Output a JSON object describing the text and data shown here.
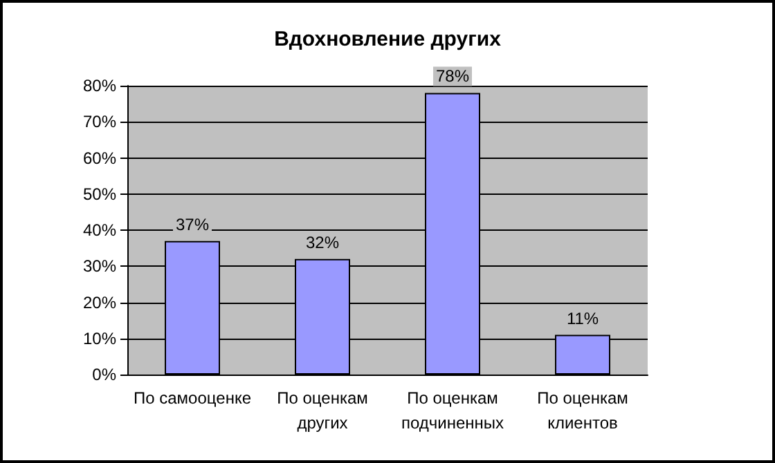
{
  "chart_data": {
    "type": "bar",
    "title": "Вдохновление других",
    "categories": [
      "По самооценке",
      "По оценкам\nдругих",
      "По оценкам\nподчиненных",
      "По оценкам\nклиентов"
    ],
    "values": [
      37,
      32,
      78,
      11
    ],
    "value_labels": [
      "37%",
      "32%",
      "78%",
      "11%"
    ],
    "color": "#9999ff",
    "ylim": [
      0,
      80
    ],
    "yticks": [
      {
        "value": 0,
        "label": "0%"
      },
      {
        "value": 10,
        "label": "10%"
      },
      {
        "value": 20,
        "label": "20%"
      },
      {
        "value": 30,
        "label": "30%"
      },
      {
        "value": 40,
        "label": "40%"
      },
      {
        "value": 50,
        "label": "50%"
      },
      {
        "value": 60,
        "label": "60%"
      },
      {
        "value": 70,
        "label": "70%"
      },
      {
        "value": 80,
        "label": "80%"
      }
    ],
    "grid": true
  }
}
